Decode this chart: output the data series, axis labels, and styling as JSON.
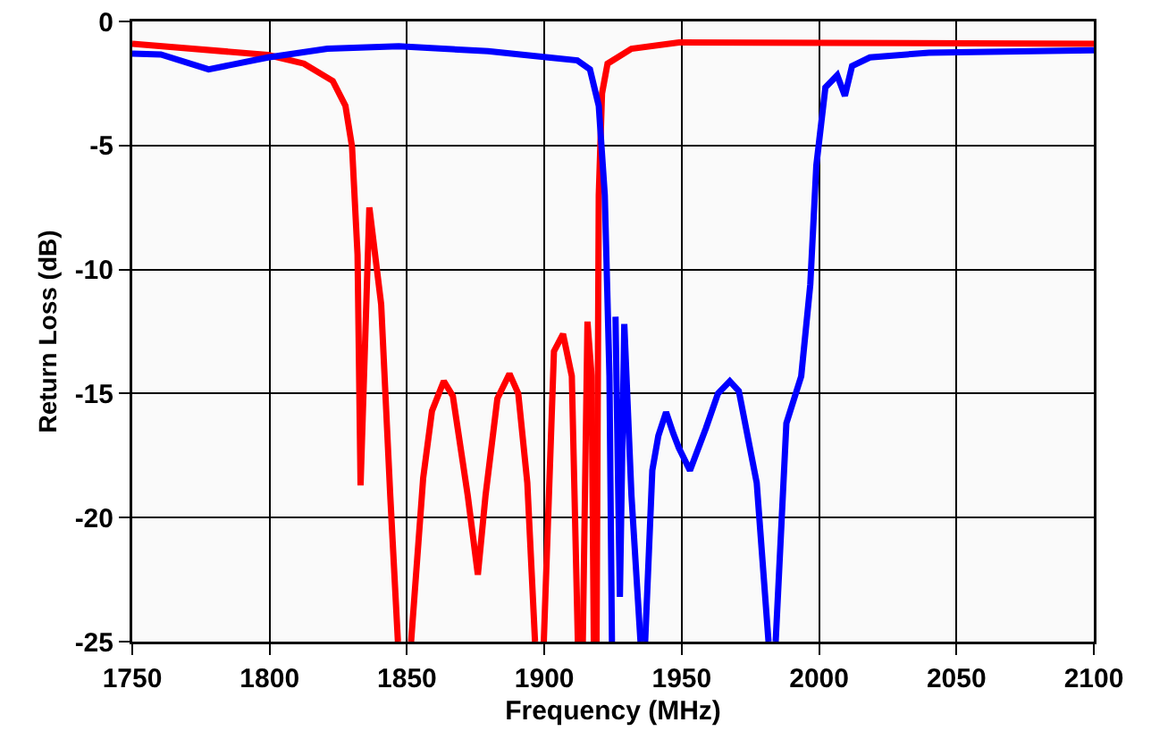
{
  "chart_data": {
    "type": "line",
    "xlabel": "Frequency (MHz)",
    "ylabel": "Return Loss (dB)",
    "xlim": [
      1750,
      2100
    ],
    "xticks": [
      1750,
      1800,
      1850,
      1900,
      1950,
      2000,
      2050,
      2100
    ],
    "ylim": [
      -25,
      0
    ],
    "yticks": [
      0,
      -5,
      -10,
      -15,
      -20,
      -25
    ],
    "grid": true,
    "marker": "none",
    "line_style": "solid",
    "series": [
      {
        "color": "#ff0000",
        "x": [
          1750,
          1799.4,
          1812.5,
          1823,
          1827.6,
          1830,
          1832,
          1833.1,
          1836.3,
          1840.6,
          1843.9,
          1846.7,
          1849,
          1851.5,
          1855.9,
          1859.1,
          1863.4,
          1866.7,
          1872.1,
          1875.8,
          1878.6,
          1882.9,
          1887.3,
          1890.5,
          1893.8,
          1896.6,
          1898,
          1899.8,
          1903.5,
          1906.8,
          1910,
          1912.2,
          1913,
          1914,
          1915.7,
          1917.2,
          1918,
          1918.5,
          1919,
          1919.8,
          1921,
          1923,
          1931.7,
          1949,
          2100
        ],
        "values": [
          -0.9,
          -1.35,
          -1.7,
          -2.4,
          -3.4,
          -5.05,
          -9.4,
          -18.7,
          -7.5,
          -11.4,
          -19.1,
          -25,
          null,
          -25,
          -18.4,
          -15.7,
          -14.5,
          -15.1,
          -19.1,
          -22.3,
          -19.1,
          -15.2,
          -14.2,
          -15,
          -18.6,
          -25,
          null,
          -25,
          -13.3,
          -12.6,
          -14.3,
          -25,
          null,
          -25,
          -12.1,
          -14.3,
          -25,
          null,
          -25,
          -7,
          -2.9,
          -1.7,
          -1.1,
          -0.85,
          -0.9
        ]
      },
      {
        "color": "#0000ff",
        "x": [
          1750,
          1760.4,
          1777.8,
          1799.4,
          1821,
          1847,
          1879.5,
          1901.4,
          1912,
          1916.6,
          1919.8,
          1922,
          1923.7,
          1924.6,
          1925.2,
          1925.9,
          1927.5,
          1929.1,
          1931.7,
          1935,
          1936,
          1936.7,
          1939.3,
          1941.5,
          1944.3,
          1946.9,
          1949,
          1953,
          1958.8,
          1963.2,
          1967.5,
          1970.8,
          1977.3,
          1981.6,
          1983,
          1984.2,
          1988.1,
          1993.5,
          1996.8,
          1999,
          2002.3,
          2006.6,
          2009.4,
          2012,
          2018.5,
          2040,
          2100
        ],
        "values": [
          -1.3,
          -1.33,
          -1.93,
          -1.45,
          -1.1,
          -1,
          -1.2,
          -1.45,
          -1.57,
          -1.93,
          -3.4,
          -7,
          -14.3,
          -25,
          null,
          -11.9,
          -23.2,
          -12.2,
          -19.1,
          -25,
          null,
          -25,
          -18.1,
          -16.7,
          -15.75,
          -16.6,
          -17.2,
          -18.1,
          -16.4,
          -15,
          -14.5,
          -14.9,
          -18.6,
          -25,
          null,
          -25,
          -16.2,
          -14.3,
          -10.6,
          -5.8,
          -2.66,
          -2.17,
          -3,
          -1.8,
          -1.45,
          -1.26,
          -1.16
        ]
      }
    ]
  }
}
